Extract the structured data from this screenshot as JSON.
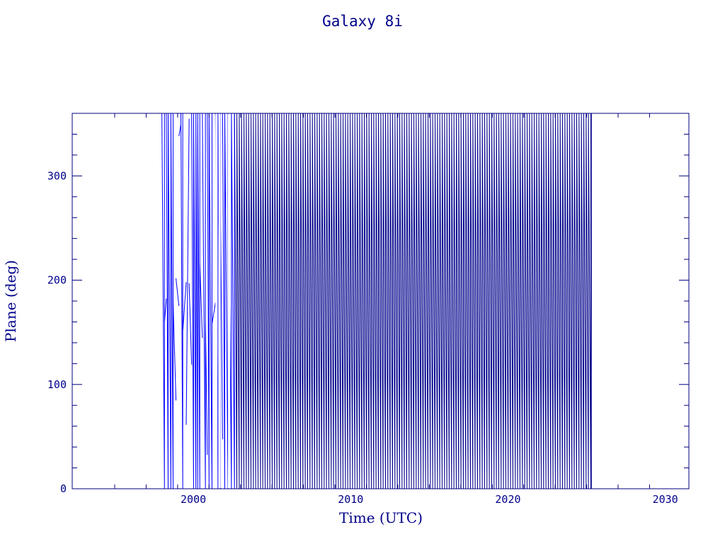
{
  "chart_data": {
    "type": "line",
    "title": "Galaxy 8i",
    "xlabel": "Time (UTC)",
    "ylabel": "Plane (deg)",
    "xlim": [
      1992.3,
      2031.5
    ],
    "ylim": [
      0,
      360
    ],
    "x_ticks": [
      2000,
      2010,
      2020,
      2030
    ],
    "x_tick_labels": [
      "2000",
      "2010",
      "2020",
      "2030"
    ],
    "y_ticks": [
      0,
      100,
      200,
      300
    ],
    "y_tick_labels": [
      "0",
      "100",
      "200",
      "300"
    ],
    "grid": false,
    "legend": "none",
    "series": [
      {
        "x_start": 1998.0,
        "x_end": 2025.3,
        "pattern": "sawtooth",
        "cycle_years": 0.15,
        "y_range": [
          0,
          360
        ],
        "note_irregular_span": [
          1998.0,
          2002.6
        ]
      }
    ],
    "colors": {
      "axis": "#000080",
      "line": "#00008b",
      "line_irregular": "#0000ff",
      "text": "#00008b"
    }
  }
}
